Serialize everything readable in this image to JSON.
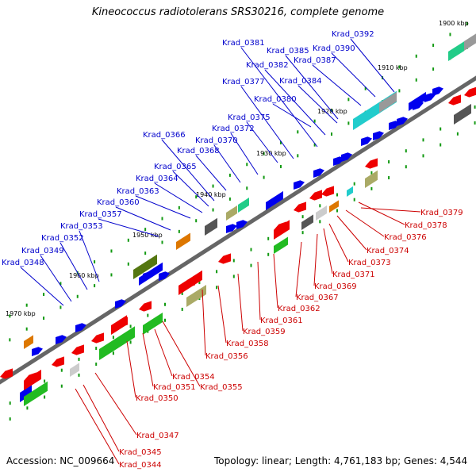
{
  "title": "Kineococcus radiotolerans SRS30216, complete genome",
  "footer": {
    "accession": "Accession: NC_009664",
    "summary": "Topology: linear; Length: 4,761,183 bp; Genes: 4,544"
  },
  "scale_ticks": [
    "1900 kbp",
    "1910 kbp",
    "1920 kbp",
    "1930 kbp",
    "1940 kbp",
    "1950 kbp",
    "1960 kbp",
    "1970 kbp"
  ],
  "colors": {
    "forward_label": "#0000cc",
    "reverse_label": "#cc0000",
    "backbone": "#666666",
    "forward_gene": "#0000ee",
    "reverse_gene": "#ee0000"
  },
  "forward_genes": [
    "Krad_0392",
    "Krad_0390",
    "Krad_0387",
    "Krad_0385",
    "Krad_0384",
    "Krad_0382",
    "Krad_0381",
    "Krad_0380",
    "Krad_0377",
    "Krad_0375",
    "Krad_0372",
    "Krad_0370",
    "Krad_0368",
    "Krad_0366",
    "Krad_0365",
    "Krad_0364",
    "Krad_0363",
    "Krad_0360",
    "Krad_0357",
    "Krad_0353",
    "Krad_0352",
    "Krad_0349",
    "Krad_0348"
  ],
  "reverse_genes": [
    "Krad_0379",
    "Krad_0378",
    "Krad_0376",
    "Krad_0374",
    "Krad_0373",
    "Krad_0371",
    "Krad_0369",
    "Krad_0367",
    "Krad_0362",
    "Krad_0361",
    "Krad_0359",
    "Krad_0358",
    "Krad_0356",
    "Krad_0354",
    "Krad_0355",
    "Krad_0351",
    "Krad_0350",
    "Krad_0347",
    "Krad_0345",
    "Krad_0344"
  ]
}
